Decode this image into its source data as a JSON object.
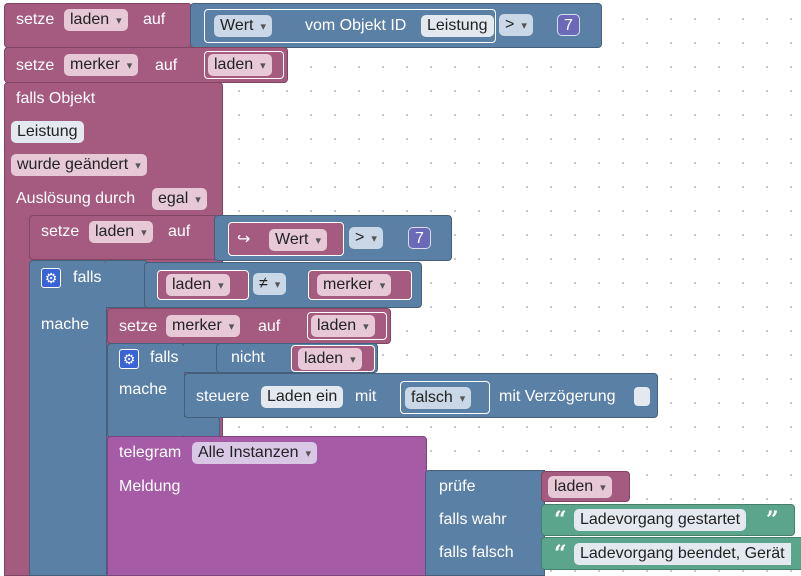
{
  "labels": {
    "setze": "setze",
    "auf": "auf",
    "vom_objekt_id": "vom Objekt ID",
    "falls_objekt": "falls Objekt",
    "wurde_geaendert": "wurde geändert",
    "ausloesung_durch": "Auslösung durch",
    "falls": "falls",
    "mache": "mache",
    "nicht": "nicht",
    "steuere": "steuere",
    "mit": "mit",
    "mit_verzoegerung": "mit Verzögerung",
    "telegram": "telegram",
    "meldung": "Meldung",
    "pruefe": "prüfe",
    "falls_wahr": "falls wahr",
    "falls_falsch": "falls falsch",
    "open_quote": "“",
    "close_quote": "”"
  },
  "values": {
    "var_laden": "laden",
    "var_merker": "merker",
    "wert": "Wert",
    "object_id_leistung": "Leistung",
    "op_greater": ">",
    "op_not_equal": "≠",
    "number_7": "7",
    "trigger_mode": "egal",
    "arrow": "↪",
    "target_laden_ein": "Laden ein",
    "bool_falsch": "falsch",
    "telegram_instance": "Alle Instanzen",
    "msg_true": "Ladevorgang gestartet",
    "msg_false": "Ladevorgang beendet, Gerät"
  },
  "colors": {
    "variables": "#a55b80",
    "logic": "#5b80a5",
    "telegram": "#a55ba5",
    "text": "#5ba58c"
  }
}
